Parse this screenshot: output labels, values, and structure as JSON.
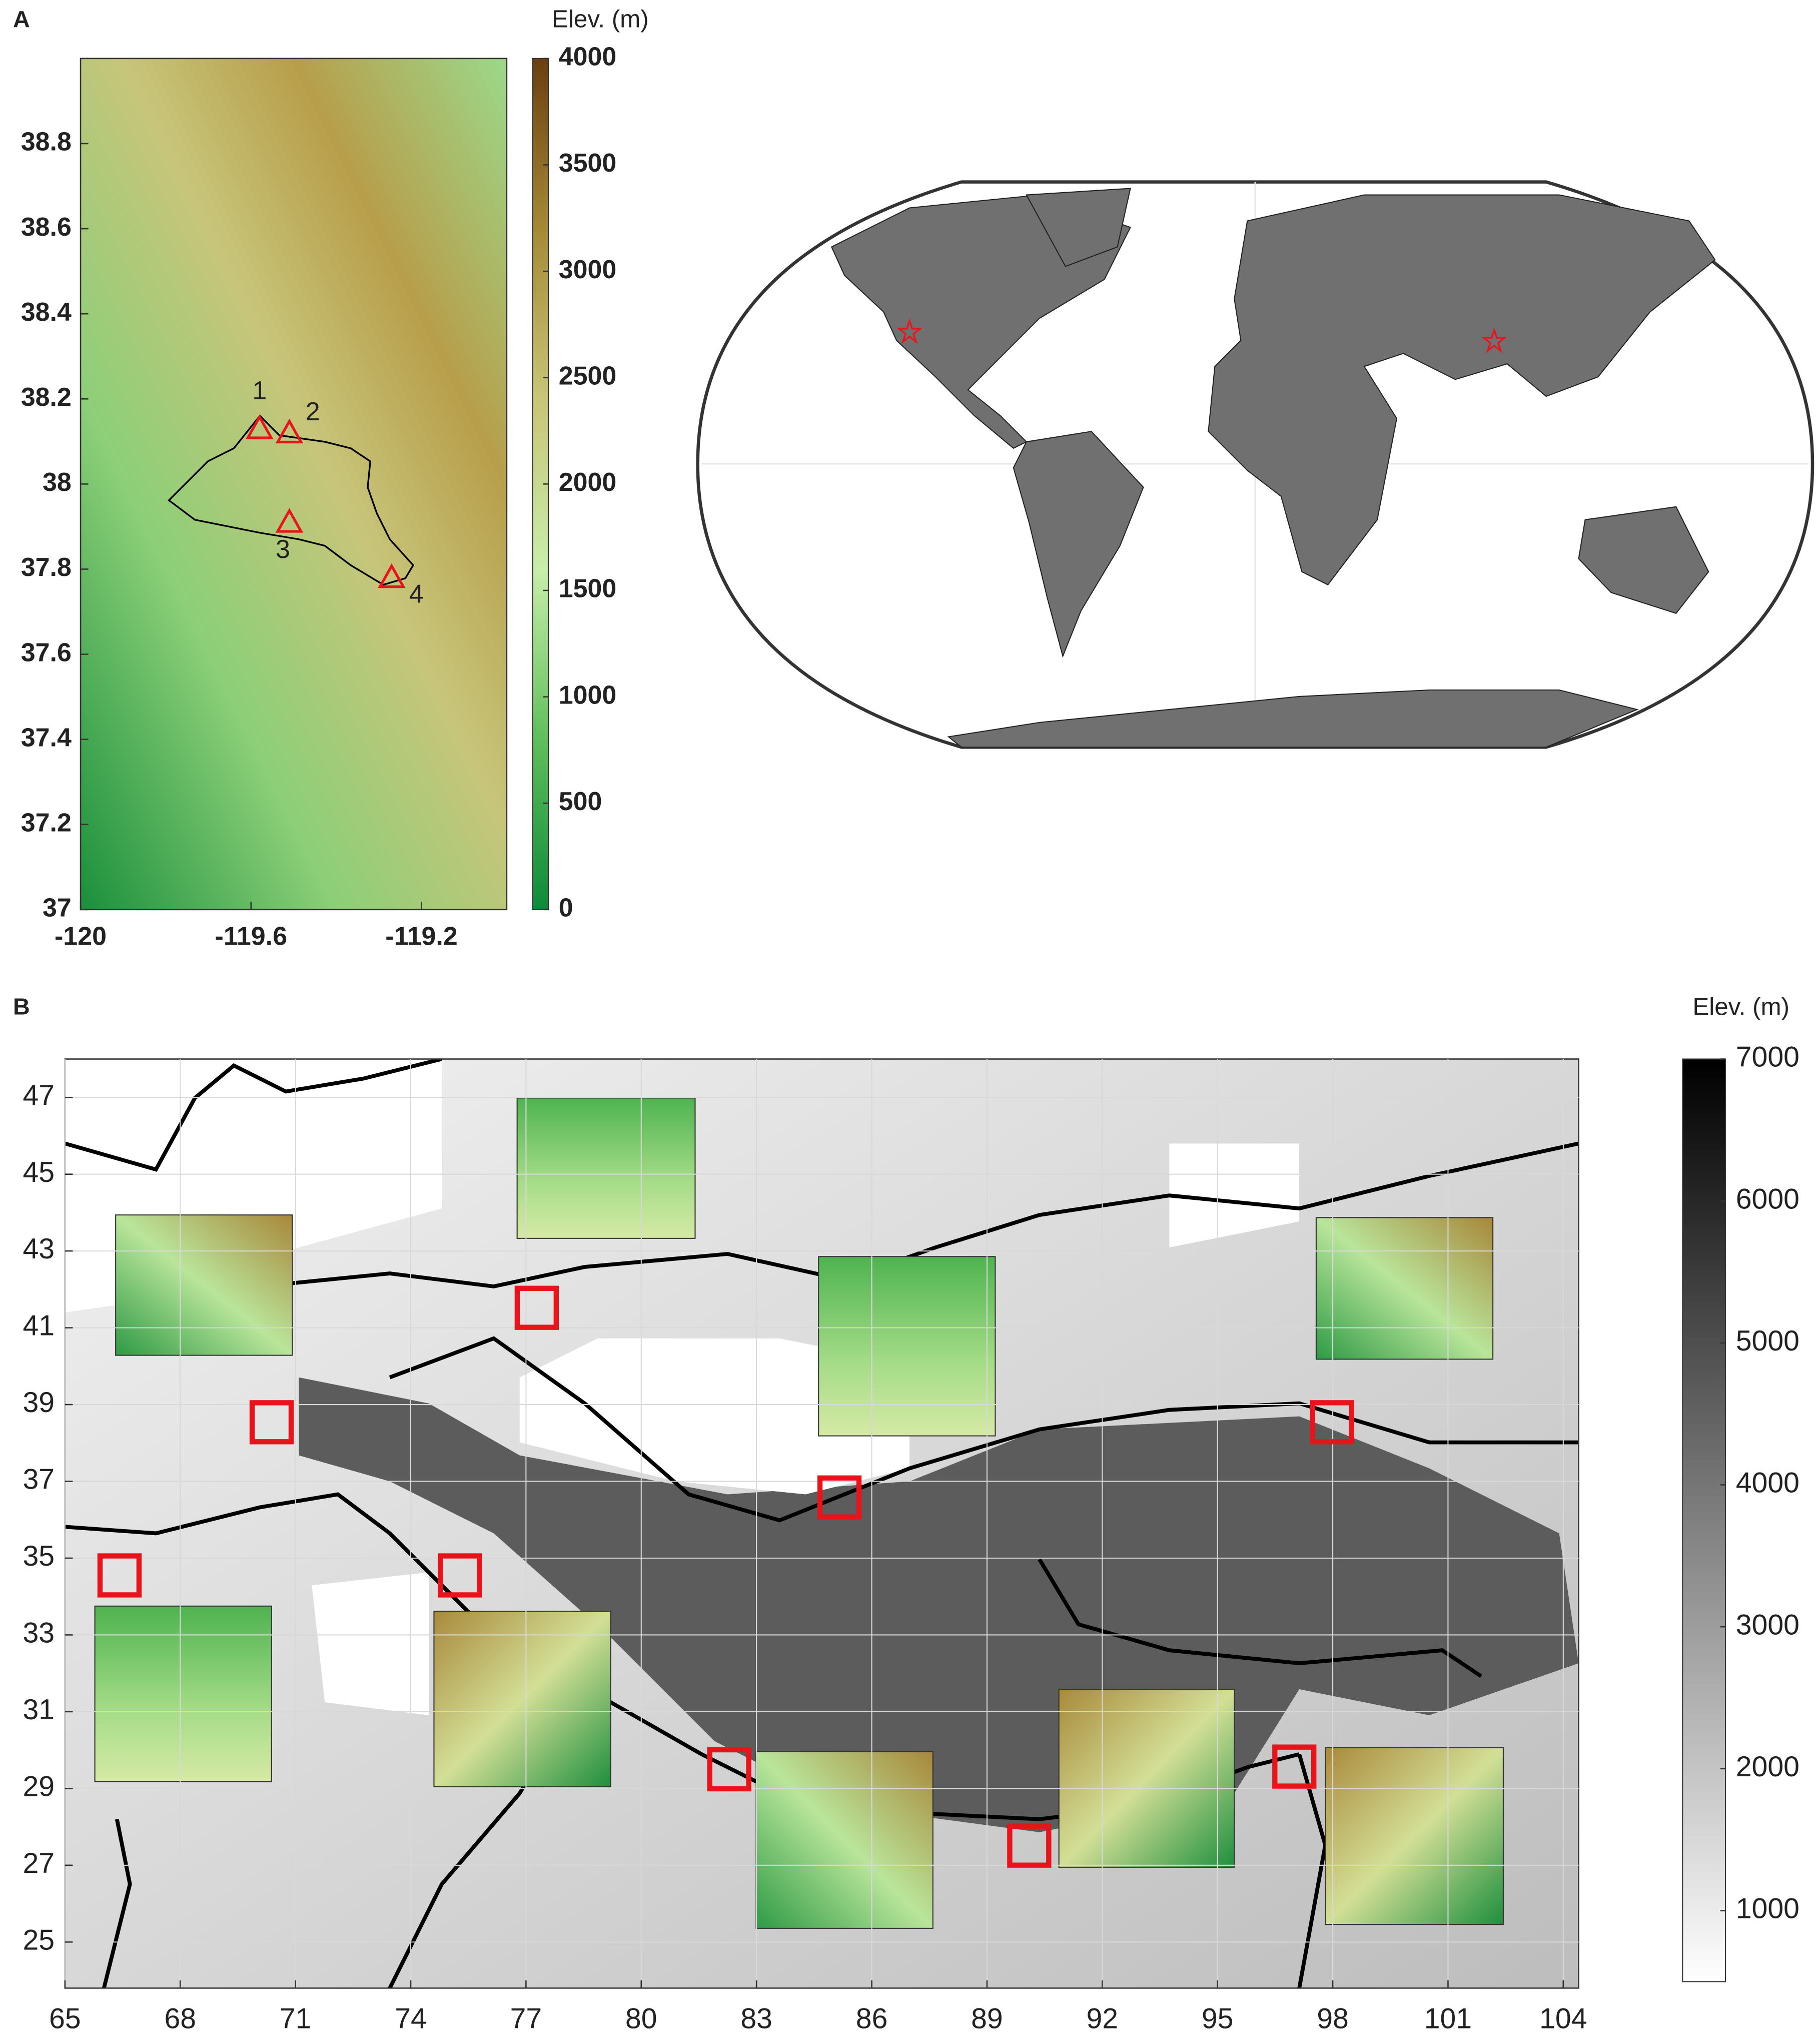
{
  "chart_data": [
    {
      "type": "map",
      "label": "A",
      "xlim": [
        -120,
        -119.0
      ],
      "ylim": [
        37,
        39
      ],
      "xticks": [
        -120,
        -119.6,
        -119.2
      ],
      "yticks": [
        37,
        37.2,
        37.4,
        37.6,
        37.8,
        38,
        38.2,
        38.4,
        38.6,
        38.8
      ],
      "colorbar": {
        "title": "Elev. (m)",
        "lim": [
          0,
          4000
        ],
        "ticks": [
          0,
          500,
          1000,
          1500,
          2000,
          2500,
          3000,
          3500,
          4000
        ],
        "colormap": [
          "#0d8a3a",
          "#5fbf5a",
          "#c8eeaa",
          "#c9c577",
          "#a58a35",
          "#6b3f10"
        ]
      },
      "sites": {
        "names": [
          "1",
          "2",
          "3",
          "4"
        ],
        "x": [
          -119.58,
          -119.51,
          -119.51,
          -119.27
        ],
        "y": [
          38.13,
          38.12,
          37.91,
          37.78
        ],
        "color": "#e8141c"
      }
    },
    {
      "type": "map",
      "label": "B",
      "xlim": [
        65,
        104.4
      ],
      "ylim": [
        23.8,
        48
      ],
      "xticks": [
        65,
        68,
        71,
        74,
        77,
        80,
        83,
        86,
        89,
        92,
        95,
        98,
        101,
        104
      ],
      "yticks": [
        25,
        27,
        29,
        31,
        33,
        35,
        37,
        39,
        41,
        43,
        45,
        47
      ],
      "grid": true,
      "colorbar": {
        "title": "Elev. (m)",
        "lim": [
          500,
          7000
        ],
        "ticks": [
          1000,
          2000,
          3000,
          4000,
          5000,
          6000,
          7000
        ],
        "colormap": [
          "#ffffff",
          "#000000"
        ]
      },
      "sites": {
        "x": [
          70.38,
          77.28,
          85.16,
          97.98,
          66.42,
          75.28,
          82.29,
          90.1,
          97.0
        ],
        "y": [
          38.54,
          41.52,
          36.58,
          38.54,
          34.55,
          34.55,
          29.5,
          27.51,
          29.57
        ],
        "color": "#e8141c"
      }
    }
  ]
}
